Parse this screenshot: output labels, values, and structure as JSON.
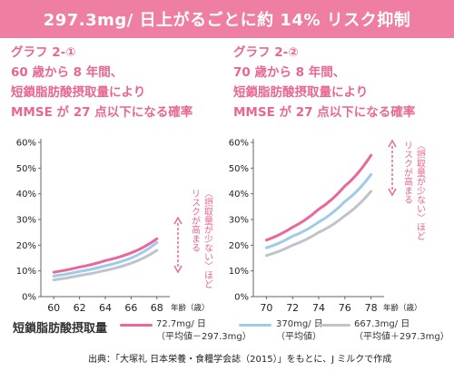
{
  "header": {
    "title": "297.3mg/ 日上がるごとに約 14% リスク抑制"
  },
  "graphs": [
    {
      "label": "グラフ 2-①",
      "line1": "60 歳から 8 年間、",
      "line2": "短鎖脂肪酸摂取量により",
      "line3": "MMSE が 27 点以下になる確率"
    },
    {
      "label": "グラフ 2-②",
      "line1": "70 歳から 8 年間、",
      "line2": "短鎖脂肪酸摂取量により",
      "line3": "MMSE が 27 点以下になる確率"
    }
  ],
  "annotation": {
    "line1": "〈摂取量が少ない〉ほど",
    "line2": "リスクが高まる"
  },
  "legend": {
    "title": "短鎖脂肪酸摂取量",
    "items": [
      {
        "value": "72.7mg/ 日",
        "note": "（平均値－297.3mg）",
        "color": "#e9679a"
      },
      {
        "value": "370mg/ 日",
        "note": "（平均値）",
        "color": "#9fcbe9"
      },
      {
        "value": "667.3mg/ 日",
        "note": "（平均値＋297.3mg）",
        "color": "#c1c3cc"
      }
    ]
  },
  "source": "出典：「大塚礼 日本栄養・食糧学会誌（2015）」をもとに、J ミルクで作成",
  "chart_data": [
    {
      "type": "line",
      "x": [
        60,
        62,
        64,
        66,
        68
      ],
      "xlabel": "年齢（歳）",
      "xlim": [
        59,
        69
      ],
      "ylim": [
        0,
        60
      ],
      "yticks": [
        "0%",
        "10%",
        "20%",
        "30%",
        "40%",
        "50%",
        "60%"
      ],
      "xticks": [
        "60",
        "62",
        "64",
        "66",
        "68"
      ],
      "grid": false,
      "series": [
        {
          "name": "72.7mg/ 日",
          "color": "#e9679a",
          "x_range": [
            60,
            68
          ],
          "values": [
            9.5,
            11.5,
            14.0,
            17.0,
            22.5
          ]
        },
        {
          "name": "370mg/ 日",
          "color": "#9fcbe9",
          "x_range": [
            60,
            68
          ],
          "values": [
            8.0,
            9.8,
            12.0,
            15.0,
            21.0
          ]
        },
        {
          "name": "667.3mg/ 日",
          "color": "#c1c3cc",
          "x_range": [
            60,
            68
          ],
          "values": [
            6.5,
            8.2,
            10.2,
            13.0,
            18.0
          ]
        }
      ]
    },
    {
      "type": "line",
      "x": [
        70,
        72,
        74,
        76,
        78
      ],
      "xlabel": "年齢（歳）",
      "xlim": [
        69,
        79
      ],
      "ylim": [
        0,
        60
      ],
      "yticks": [
        "0%",
        "10%",
        "20%",
        "30%",
        "40%",
        "50%",
        "60%"
      ],
      "xticks": [
        "70",
        "72",
        "74",
        "76",
        "78"
      ],
      "grid": false,
      "series": [
        {
          "name": "72.7mg/ 日",
          "color": "#e9679a",
          "x_range": [
            70,
            78
          ],
          "values": [
            22.0,
            27.0,
            34.0,
            43.0,
            55.0
          ]
        },
        {
          "name": "370mg/ 日",
          "color": "#9fcbe9",
          "x_range": [
            70,
            78
          ],
          "values": [
            19.0,
            23.5,
            29.0,
            37.0,
            47.5
          ]
        },
        {
          "name": "667.3mg/ 日",
          "color": "#c1c3cc",
          "x_range": [
            70,
            78
          ],
          "values": [
            16.0,
            20.0,
            25.0,
            31.5,
            41.0
          ]
        }
      ]
    }
  ]
}
